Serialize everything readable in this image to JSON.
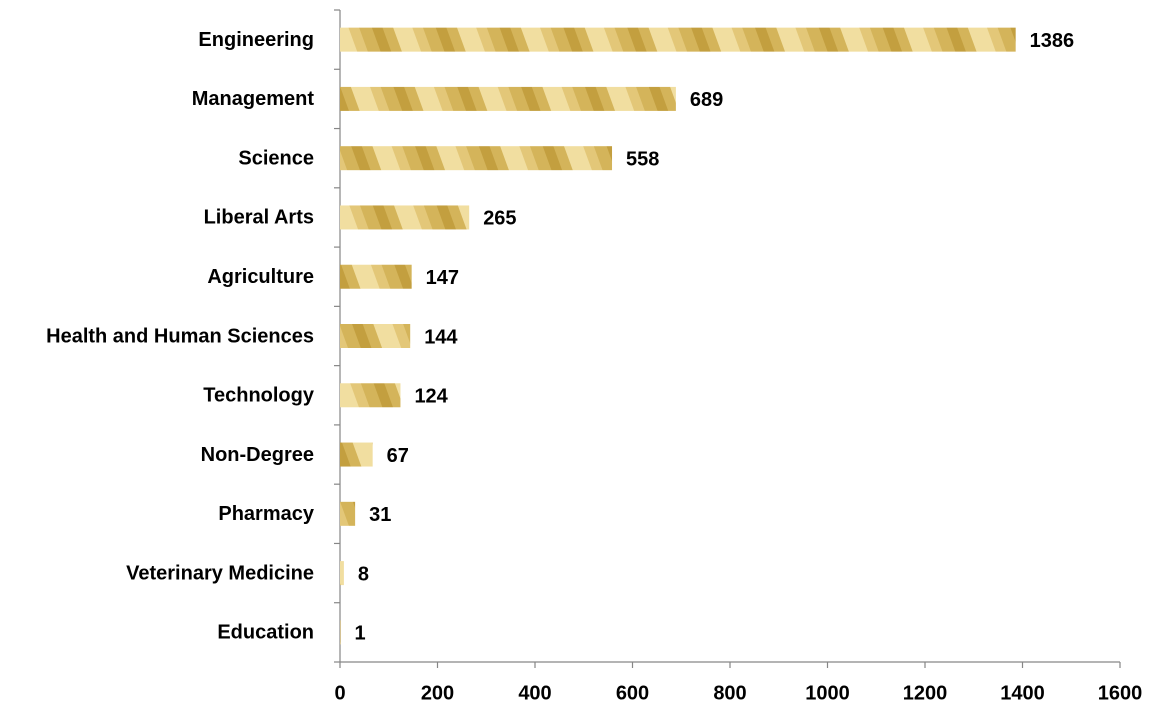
{
  "chart_data": {
    "type": "bar",
    "orientation": "horizontal",
    "categories": [
      "Engineering",
      "Management",
      "Science",
      "Liberal Arts",
      "Agriculture",
      "Health and Human Sciences",
      "Technology",
      "Non-Degree",
      "Pharmacy",
      "Veterinary Medicine",
      "Education"
    ],
    "values": [
      1386,
      689,
      558,
      265,
      147,
      144,
      124,
      67,
      31,
      8,
      1
    ],
    "color": "#d4b45a",
    "xlim": [
      0,
      1600
    ],
    "xticks": [
      0,
      200,
      400,
      600,
      800,
      1000,
      1200,
      1400,
      1600
    ],
    "grid": false
  }
}
